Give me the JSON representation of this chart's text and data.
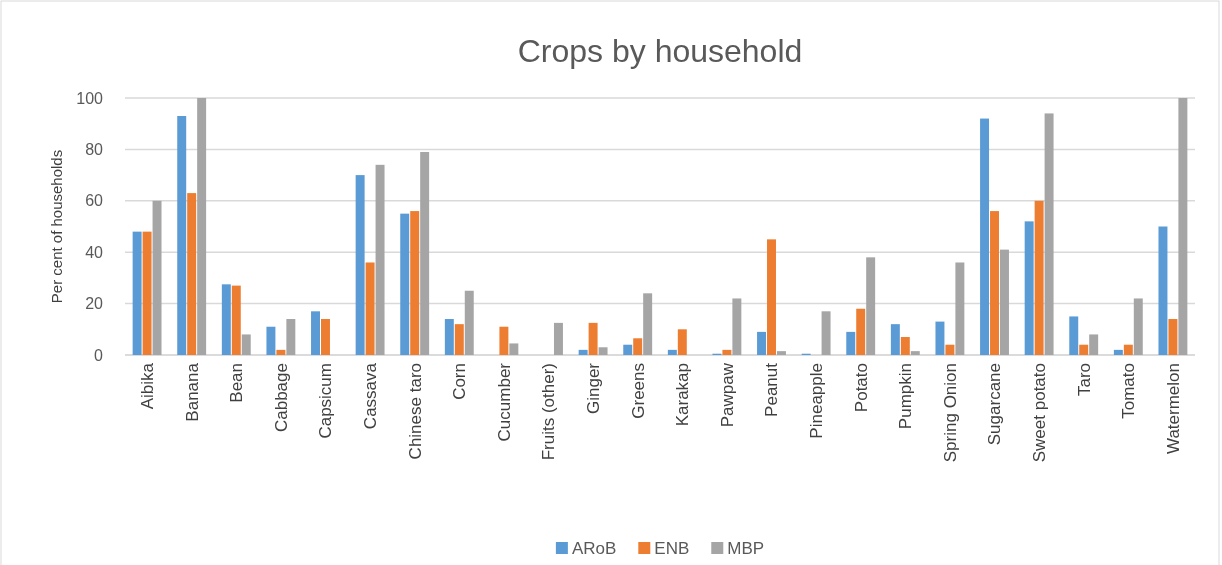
{
  "chart_data": {
    "type": "bar",
    "title": "Crops by household",
    "ylabel": "Per cent of households",
    "categories": [
      "Aibika",
      "Banana",
      "Bean",
      "Cabbage",
      "Capsicum",
      "Cassava",
      "Chinese taro",
      "Corn",
      "Cucumber",
      "Fruits (other)",
      "Ginger",
      "Greens",
      "Karakap",
      "Pawpaw",
      "Peanut",
      "Pineapple",
      "Potato",
      "Pumpkin",
      "Spring Onion",
      "Sugarcane",
      "Sweet potato",
      "Taro",
      "Tomato",
      "Watermelon"
    ],
    "series": [
      {
        "name": "ARoB",
        "color": "#5b9bd5",
        "values": [
          48,
          93,
          27.5,
          11,
          17,
          70,
          55,
          14,
          0,
          0,
          2,
          4,
          2,
          0.5,
          9,
          0.5,
          9,
          12,
          13,
          92,
          52,
          15,
          2,
          50
        ]
      },
      {
        "name": "ENB",
        "color": "#ed7d31",
        "values": [
          48,
          63,
          27,
          2,
          14,
          36,
          56,
          12,
          11,
          0,
          12.5,
          6.5,
          10,
          2,
          45,
          0,
          18,
          7,
          4,
          56,
          60,
          4,
          4,
          14
        ]
      },
      {
        "name": "MBP",
        "color": "#a5a5a5",
        "values": [
          60,
          100,
          8,
          14,
          0,
          74,
          79,
          25,
          4.5,
          12.5,
          3,
          24,
          0,
          22,
          1.5,
          17,
          38,
          1.5,
          36,
          41,
          94,
          8,
          22,
          100
        ]
      }
    ],
    "ylim": [
      0,
      100
    ],
    "yticks": [
      0,
      20,
      40,
      60,
      80,
      100
    ],
    "grid": "y",
    "legend": "bottom"
  }
}
